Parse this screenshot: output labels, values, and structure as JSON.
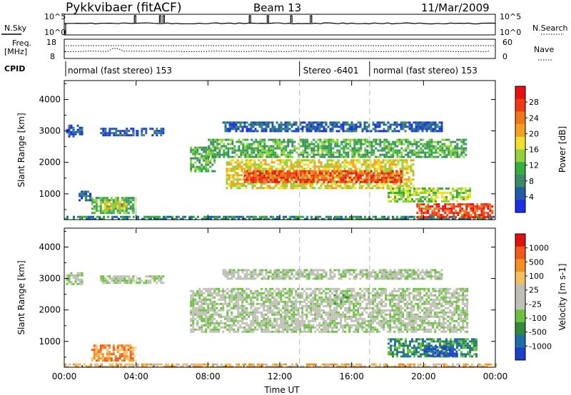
{
  "header": {
    "station": "Pykkvibaer (fitACF)",
    "beam": "Beam 13",
    "date": "11/Mar/2009"
  },
  "side_labels": {
    "nsky": "N.Sky",
    "freq": "Freq.",
    "mhz": "[MHz]",
    "cpid": "CPID",
    "nsearch": "N.Search",
    "nave": "Nave"
  },
  "mini_axes": {
    "nsky_ticks": [
      "10^5",
      "10^0"
    ],
    "nsearch_ticks": [
      "10^5",
      "10^0"
    ],
    "freq_ticks": [
      "18",
      "8"
    ],
    "nave_ticks": [
      "60",
      "0"
    ]
  },
  "cpid_segments": [
    {
      "label": "normal (fast stereo) 153",
      "start_h": 0,
      "end_h": 13.1
    },
    {
      "label": "Stereo -6401",
      "start_h": 13.1,
      "end_h": 17.0
    },
    {
      "label": "normal (fast stereo) 153",
      "start_h": 17.0,
      "end_h": 24
    }
  ],
  "chart_data": [
    {
      "type": "heatmap",
      "panel": "power",
      "ylabel": "Slant Range [km]",
      "xlim": [
        0,
        24
      ],
      "ylim": [
        180,
        4600
      ],
      "yticks": [
        "1000",
        "2000",
        "3000",
        "4000"
      ],
      "xticks": [
        "00:00",
        "04:00",
        "08:00",
        "12:00",
        "16:00",
        "20:00",
        "00:00"
      ],
      "xlabel": "Time UT",
      "colorbar": {
        "label": "Power [dB]",
        "ticks": [
          "4",
          "8",
          "12",
          "16",
          "20",
          "24",
          "28"
        ],
        "colors": [
          "#1b2fe8",
          "#1e5ea8",
          "#3a8a6a",
          "#35b040",
          "#8fd23a",
          "#f0e030",
          "#f5a020",
          "#f07818",
          "#ef3a14",
          "#e81010"
        ]
      },
      "echo_regions": [
        {
          "t0": 0.1,
          "t1": 1.0,
          "r0": 2800,
          "r1": 3200,
          "level": 1
        },
        {
          "t0": 2.0,
          "t1": 5.5,
          "r0": 2850,
          "r1": 3100,
          "level": 1
        },
        {
          "t0": 0.8,
          "t1": 1.4,
          "r0": 800,
          "r1": 1100,
          "level": 1
        },
        {
          "t0": 1.5,
          "t1": 4.0,
          "r0": 420,
          "r1": 900,
          "level": 3
        },
        {
          "t0": 2.2,
          "t1": 3.4,
          "r0": 520,
          "r1": 780,
          "level": 5
        },
        {
          "t0": 0.0,
          "t1": 24.0,
          "r0": 190,
          "r1": 300,
          "level": 2
        },
        {
          "t0": 7.0,
          "t1": 8.4,
          "r0": 1700,
          "r1": 2500,
          "level": 3
        },
        {
          "t0": 8.0,
          "t1": 22.4,
          "r0": 2150,
          "r1": 2750,
          "level": 3
        },
        {
          "t0": 8.8,
          "t1": 21.0,
          "r0": 3000,
          "r1": 3300,
          "level": 1
        },
        {
          "t0": 9.0,
          "t1": 19.4,
          "r0": 1200,
          "r1": 2100,
          "level": 5
        },
        {
          "t0": 10.0,
          "t1": 18.8,
          "r0": 1350,
          "r1": 1750,
          "level": 8
        },
        {
          "t0": 18.0,
          "t1": 22.6,
          "r0": 750,
          "r1": 1200,
          "level": 4
        },
        {
          "t0": 19.6,
          "t1": 23.8,
          "r0": 240,
          "r1": 700,
          "level": 8
        }
      ]
    },
    {
      "type": "heatmap",
      "panel": "velocity",
      "ylabel": "Slant Range [km]",
      "xlim": [
        0,
        24
      ],
      "ylim": [
        180,
        4600
      ],
      "yticks": [
        "1000",
        "2000",
        "3000",
        "4000"
      ],
      "xticks": [
        "00:00",
        "04:00",
        "08:00",
        "12:00",
        "16:00",
        "20:00",
        "00:00"
      ],
      "xlabel": "Time UT",
      "colorbar": {
        "label": "Velocity [m s-1]",
        "ticks": [
          "1000",
          "500",
          "100",
          "25",
          "-25",
          "-100",
          "-500",
          "-1000"
        ],
        "colors": [
          "#1f3fc8",
          "#1e6ea8",
          "#2f8a3a",
          "#6cc240",
          "#c0c0b8",
          "#c0c0b8",
          "#f2c060",
          "#f59020",
          "#f25818",
          "#e01010"
        ]
      },
      "echo_regions": [
        {
          "t0": 0.1,
          "t1": 1.0,
          "r0": 2800,
          "r1": 3200,
          "level": 4
        },
        {
          "t0": 2.0,
          "t1": 5.5,
          "r0": 2850,
          "r1": 3100,
          "level": 4
        },
        {
          "t0": 1.5,
          "t1": 4.0,
          "r0": 420,
          "r1": 900,
          "level": 7
        },
        {
          "t0": 0.0,
          "t1": 24.0,
          "r0": 190,
          "r1": 300,
          "level": 6
        },
        {
          "t0": 7.0,
          "t1": 22.4,
          "r0": 1300,
          "r1": 2700,
          "level": 4
        },
        {
          "t0": 8.8,
          "t1": 21.0,
          "r0": 3000,
          "r1": 3300,
          "level": 4
        },
        {
          "t0": 15.0,
          "t1": 15.8,
          "r0": 2200,
          "r1": 2500,
          "level": 3
        },
        {
          "t0": 18.0,
          "t1": 23.0,
          "r0": 500,
          "r1": 1100,
          "level": 2
        },
        {
          "t0": 20.0,
          "t1": 21.8,
          "r0": 550,
          "r1": 850,
          "level": 0
        }
      ]
    }
  ]
}
